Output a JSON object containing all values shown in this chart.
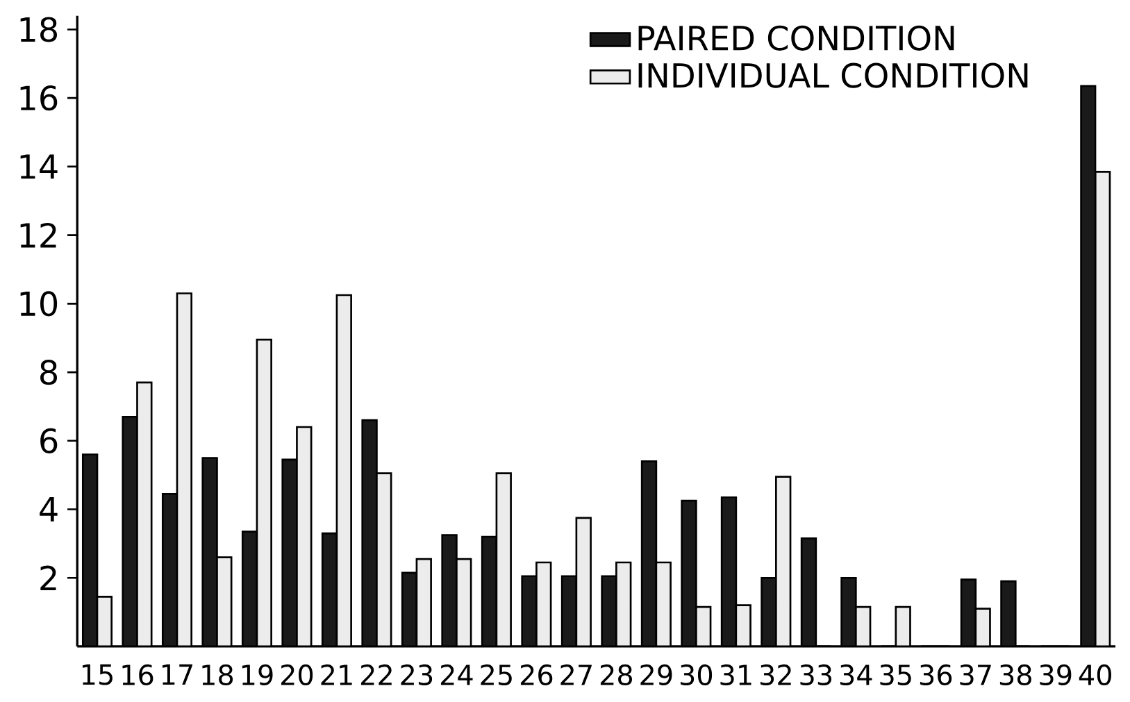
{
  "chart_data": {
    "type": "bar",
    "categories": [
      "15",
      "16",
      "17",
      "18",
      "19",
      "20",
      "21",
      "22",
      "23",
      "24",
      "25",
      "26",
      "27",
      "28",
      "29",
      "30",
      "31",
      "32",
      "33",
      "34",
      "35",
      "36",
      "37",
      "38",
      "39",
      "40"
    ],
    "series": [
      {
        "name": "PAIRED CONDITION",
        "color": "#1a1a1a",
        "values": [
          5.6,
          6.7,
          4.45,
          5.5,
          3.35,
          5.45,
          3.3,
          6.6,
          2.15,
          3.25,
          3.2,
          2.05,
          2.05,
          2.05,
          5.4,
          4.25,
          4.35,
          2.0,
          3.15,
          2.0,
          0,
          0,
          1.95,
          1.9,
          0,
          16.35
        ]
      },
      {
        "name": "INDIVIDUAL CONDITION",
        "color": "#ececec",
        "values": [
          1.45,
          7.7,
          10.3,
          2.6,
          8.95,
          6.4,
          10.25,
          5.05,
          2.55,
          2.55,
          5.05,
          2.45,
          3.75,
          2.45,
          2.45,
          1.15,
          1.2,
          4.95,
          0,
          1.15,
          1.15,
          0,
          1.1,
          0,
          0,
          13.85
        ]
      }
    ],
    "ylim": [
      0,
      18.4
    ],
    "yticks": [
      2,
      4,
      6,
      8,
      10,
      12,
      14,
      16,
      18
    ],
    "legend": "top right"
  }
}
